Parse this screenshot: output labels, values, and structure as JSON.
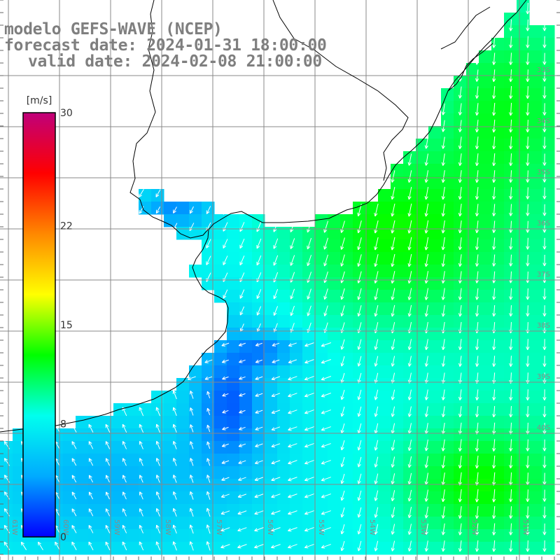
{
  "header": {
    "model_line": "modelo GEFS-WAVE (NCEP)",
    "forecast_line": "forecast date: 2024-01-31 18:00:00",
    "valid_line": "valid date: 2024-02-08 21:00:00"
  },
  "colorbar": {
    "unit": "[m/s]",
    "ticks": [
      {
        "value": 0,
        "label": "0"
      },
      {
        "value": 8,
        "label": "8"
      },
      {
        "value": 15,
        "label": "15"
      },
      {
        "value": 22,
        "label": "22"
      },
      {
        "value": 30,
        "label": "30"
      }
    ],
    "range": [
      0,
      30
    ],
    "colors": [
      "#0000ff",
      "#00aaff",
      "#00ffee",
      "#00ff00",
      "#ffff00",
      "#ff8800",
      "#ff0000",
      "#c0007a"
    ]
  },
  "map": {
    "lat_labels": [
      "33S",
      "34S",
      "35S",
      "36S",
      "37S",
      "38S",
      "39S",
      "40S"
    ],
    "lon_labels": [
      "61W",
      "60W",
      "59W",
      "58W",
      "57W",
      "56W",
      "55W",
      "54W",
      "53W",
      "52W",
      "51W"
    ],
    "field": "wind speed with direction arrows",
    "land_color": "#ffffff",
    "coast_color": "#000000",
    "grid_color": "#888888"
  }
}
